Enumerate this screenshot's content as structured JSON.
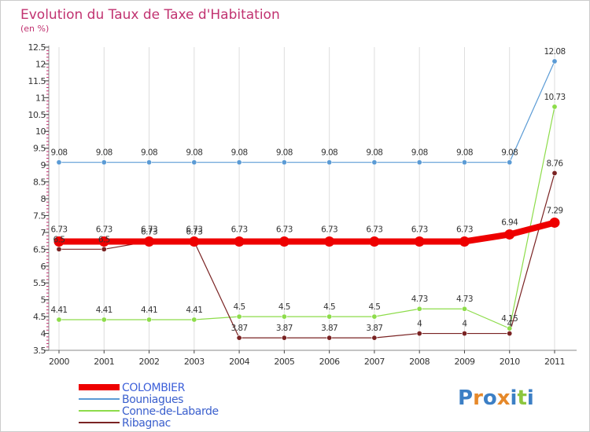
{
  "chart_data": {
    "type": "line",
    "title": "Evolution du Taux de Taxe d'Habitation",
    "subtitle": "(en %)",
    "xlabel": "",
    "ylabel": "(en %)",
    "x": [
      "2000",
      "2001",
      "2002",
      "2003",
      "2004",
      "2005",
      "2006",
      "2007",
      "2008",
      "2009",
      "2010",
      "2011"
    ],
    "ylim": [
      3.5,
      12.5
    ],
    "yticks": [
      "3.5",
      "4",
      "4.5",
      "5",
      "5.5",
      "6",
      "6.5",
      "7",
      "7.5",
      "8",
      "8.5",
      "9",
      "9.5",
      "10",
      "10.5",
      "11",
      "11.5",
      "12",
      "12.5"
    ],
    "legend_position": "bottom-left",
    "series": [
      {
        "name": "COLOMBIER",
        "color": "#ee0000",
        "values": [
          6.73,
          6.73,
          6.73,
          6.73,
          6.73,
          6.73,
          6.73,
          6.73,
          6.73,
          6.73,
          6.94,
          7.29
        ],
        "labels": [
          "6.73",
          "6.73",
          "6.73",
          "6.73",
          "6.73",
          "6.73",
          "6.73",
          "6.73",
          "6.73",
          "6.73",
          "6.94",
          "7.29"
        ]
      },
      {
        "name": "Bouniagues",
        "color": "#5b9bd5",
        "values": [
          9.08,
          9.08,
          9.08,
          9.08,
          9.08,
          9.08,
          9.08,
          9.08,
          9.08,
          9.08,
          9.08,
          12.08
        ],
        "labels": [
          "9.08",
          "9.08",
          "9.08",
          "9.08",
          "9.08",
          "9.08",
          "9.08",
          "9.08",
          "9.08",
          "9.08",
          "9.08",
          "12.08"
        ]
      },
      {
        "name": "Conne-de-Labarde",
        "color": "#8ddc4a",
        "values": [
          4.41,
          4.41,
          4.41,
          4.41,
          4.5,
          4.5,
          4.5,
          4.5,
          4.73,
          4.73,
          4.15,
          10.73
        ],
        "labels": [
          "4.41",
          "4.41",
          "4.41",
          "4.41",
          "4.5",
          "4.5",
          "4.5",
          "4.5",
          "4.73",
          "4.73",
          "4.15",
          "10.73"
        ]
      },
      {
        "name": "Ribagnac",
        "color": "#7a2323",
        "values": [
          6.5,
          6.5,
          6.73,
          6.73,
          3.87,
          3.87,
          3.87,
          3.87,
          4,
          4,
          4,
          8.76
        ],
        "labels": [
          "6.5",
          "6.5",
          "6.73",
          "6.73",
          "3.87",
          "3.87",
          "3.87",
          "3.87",
          "4",
          "4",
          "4",
          "8.76"
        ]
      }
    ]
  },
  "branding": {
    "letters": [
      "P",
      "r",
      "o",
      "x",
      "i",
      "t",
      "i"
    ],
    "colors": [
      "#3c7fc5",
      "#e6892a",
      "#3c7fc5",
      "#e6892a",
      "#3c7fc5",
      "#8cc63e",
      "#3c7fc5"
    ]
  },
  "colors": {
    "title": "#c13270",
    "axis": "#888888",
    "grid": "#dddddd",
    "minor_tick": "#c13270"
  }
}
